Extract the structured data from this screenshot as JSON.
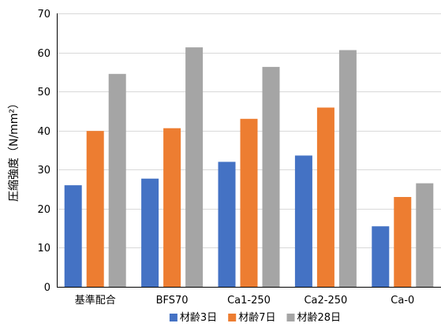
{
  "chart_data": {
    "type": "bar",
    "title": "",
    "xlabel": "",
    "ylabel": "圧縮強度（N/mm²）",
    "ylim": [
      0,
      70
    ],
    "yticks": [
      0,
      10,
      20,
      30,
      40,
      50,
      60,
      70
    ],
    "grid": true,
    "legend_position": "bottom",
    "categories": [
      "基準配合",
      "BFS70",
      "Ca1-250",
      "Ca2-250",
      "Ca-0"
    ],
    "series": [
      {
        "name": "材齢3日",
        "color": "#4472C4",
        "values": [
          26,
          27.7,
          32,
          33.6,
          15.5
        ]
      },
      {
        "name": "材齢7日",
        "color": "#ED7D31",
        "values": [
          39.9,
          40.6,
          43,
          45.9,
          23
        ]
      },
      {
        "name": "材齢28日",
        "color": "#A5A5A5",
        "values": [
          54.5,
          61.3,
          56.3,
          60.6,
          26.5
        ]
      }
    ]
  }
}
